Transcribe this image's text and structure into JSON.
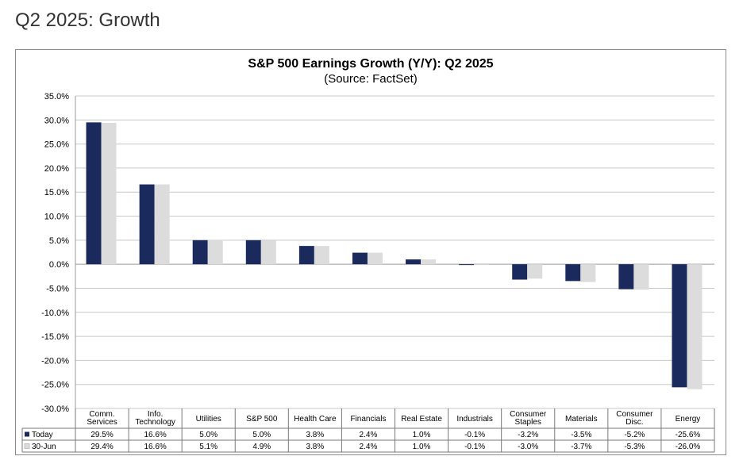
{
  "page": {
    "title": "Q2 2025: Growth"
  },
  "chart_data": {
    "type": "bar",
    "title": "S&P 500 Earnings Growth (Y/Y): Q2 2025",
    "subtitle": "(Source: FactSet)",
    "categories": [
      [
        "Comm.",
        "Services"
      ],
      [
        "Info.",
        "Technology"
      ],
      [
        "Utilities"
      ],
      [
        "S&P 500"
      ],
      [
        "Health Care"
      ],
      [
        "Financials"
      ],
      [
        "Real Estate"
      ],
      [
        "Industrials"
      ],
      [
        "Consumer",
        "Staples"
      ],
      [
        "Materials"
      ],
      [
        "Consumer",
        "Disc."
      ],
      [
        "Energy"
      ]
    ],
    "series": [
      {
        "name": "Today",
        "color": "#1b2a5c",
        "values": [
          29.5,
          16.6,
          5.0,
          5.0,
          3.8,
          2.4,
          1.0,
          -0.1,
          -3.2,
          -3.5,
          -5.2,
          -25.6
        ],
        "labels": [
          "29.5%",
          "16.6%",
          "5.0%",
          "5.0%",
          "3.8%",
          "2.4%",
          "1.0%",
          "-0.1%",
          "-3.2%",
          "-3.5%",
          "-5.2%",
          "-25.6%"
        ]
      },
      {
        "name": "30-Jun",
        "color": "#dcdcdc",
        "values": [
          29.4,
          16.6,
          5.1,
          4.9,
          3.8,
          2.4,
          1.0,
          -0.1,
          -3.0,
          -3.7,
          -5.3,
          -26.0
        ],
        "labels": [
          "29.4%",
          "16.6%",
          "5.1%",
          "4.9%",
          "3.8%",
          "2.4%",
          "1.0%",
          "-0.1%",
          "-3.0%",
          "-3.7%",
          "-5.3%",
          "-26.0%"
        ]
      }
    ],
    "ylim": [
      -30,
      35
    ],
    "yticks": [
      35,
      30,
      25,
      20,
      15,
      10,
      5,
      0,
      -5,
      -10,
      -15,
      -20,
      -25,
      -30
    ],
    "ytick_labels": [
      "35.0%",
      "30.0%",
      "25.0%",
      "20.0%",
      "15.0%",
      "10.0%",
      "5.0%",
      "0.0%",
      "-5.0%",
      "-10.0%",
      "-15.0%",
      "-20.0%",
      "-25.0%",
      "-30.0%"
    ],
    "grid": true,
    "legend": "data-table"
  }
}
